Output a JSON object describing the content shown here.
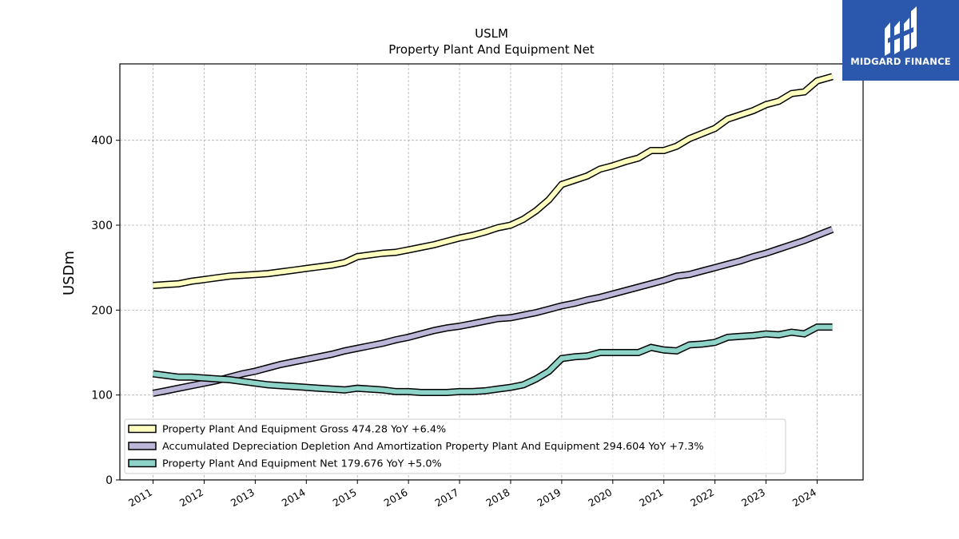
{
  "brand": {
    "name": "MIDGARD FINANCE",
    "background": "#2b58ac",
    "icon": "midgard-monogram-icon"
  },
  "chart_data": {
    "type": "line",
    "title": "USLM",
    "subtitle": "Property Plant And Equipment Net",
    "xlabel": "",
    "ylabel": "USDm",
    "xlim": [
      2010.35,
      2024.9
    ],
    "ylim": [
      0,
      490
    ],
    "yticks": [
      0,
      100,
      200,
      300,
      400
    ],
    "xticks": [
      2011,
      2012,
      2013,
      2014,
      2015,
      2016,
      2017,
      2018,
      2019,
      2020,
      2021,
      2022,
      2023,
      2024
    ],
    "grid": true,
    "legend_position": "lower-left",
    "series": [
      {
        "name": "Property Plant And Equipment Gross  474.28 YoY +6.4%",
        "color": "#ffffbf",
        "points": [
          [
            2011.0,
            229
          ],
          [
            2011.25,
            230
          ],
          [
            2011.5,
            231
          ],
          [
            2011.75,
            234
          ],
          [
            2012.0,
            236
          ],
          [
            2012.25,
            238
          ],
          [
            2012.5,
            240
          ],
          [
            2012.75,
            241
          ],
          [
            2013.0,
            242
          ],
          [
            2013.25,
            243
          ],
          [
            2013.5,
            245
          ],
          [
            2013.75,
            247
          ],
          [
            2014.0,
            249
          ],
          [
            2014.25,
            251
          ],
          [
            2014.5,
            253
          ],
          [
            2014.75,
            256
          ],
          [
            2015.0,
            263
          ],
          [
            2015.25,
            265
          ],
          [
            2015.5,
            267
          ],
          [
            2015.75,
            268
          ],
          [
            2016.0,
            271
          ],
          [
            2016.25,
            274
          ],
          [
            2016.5,
            277
          ],
          [
            2016.75,
            281
          ],
          [
            2017.0,
            285
          ],
          [
            2017.25,
            288
          ],
          [
            2017.5,
            292
          ],
          [
            2017.75,
            297
          ],
          [
            2018.0,
            300
          ],
          [
            2018.25,
            307
          ],
          [
            2018.5,
            317
          ],
          [
            2018.75,
            330
          ],
          [
            2019.0,
            348
          ],
          [
            2019.25,
            353
          ],
          [
            2019.5,
            358
          ],
          [
            2019.75,
            366
          ],
          [
            2020.0,
            370
          ],
          [
            2020.25,
            375
          ],
          [
            2020.5,
            379
          ],
          [
            2020.75,
            388
          ],
          [
            2021.0,
            388
          ],
          [
            2021.25,
            393
          ],
          [
            2021.5,
            402
          ],
          [
            2021.75,
            408
          ],
          [
            2022.0,
            414
          ],
          [
            2022.25,
            425
          ],
          [
            2022.5,
            430
          ],
          [
            2022.75,
            435
          ],
          [
            2023.0,
            442
          ],
          [
            2023.25,
            446
          ],
          [
            2023.5,
            455
          ],
          [
            2023.75,
            457
          ],
          [
            2024.0,
            470
          ],
          [
            2024.3,
            475
          ]
        ]
      },
      {
        "name": "Accumulated Depreciation Depletion And Amortization Property Plant And Equipment  294.604 YoY +7.3%",
        "color": "#bcb6d8",
        "points": [
          [
            2011.0,
            102
          ],
          [
            2011.25,
            105
          ],
          [
            2011.5,
            108
          ],
          [
            2011.75,
            111
          ],
          [
            2012.0,
            114
          ],
          [
            2012.25,
            117
          ],
          [
            2012.5,
            121
          ],
          [
            2012.75,
            125
          ],
          [
            2013.0,
            128
          ],
          [
            2013.25,
            132
          ],
          [
            2013.5,
            136
          ],
          [
            2013.75,
            139
          ],
          [
            2014.0,
            142
          ],
          [
            2014.25,
            145
          ],
          [
            2014.5,
            148
          ],
          [
            2014.75,
            152
          ],
          [
            2015.0,
            155
          ],
          [
            2015.25,
            158
          ],
          [
            2015.5,
            161
          ],
          [
            2015.75,
            165
          ],
          [
            2016.0,
            168
          ],
          [
            2016.25,
            172
          ],
          [
            2016.5,
            176
          ],
          [
            2016.75,
            179
          ],
          [
            2017.0,
            181
          ],
          [
            2017.25,
            184
          ],
          [
            2017.5,
            187
          ],
          [
            2017.75,
            190
          ],
          [
            2018.0,
            191
          ],
          [
            2018.25,
            194
          ],
          [
            2018.5,
            197
          ],
          [
            2018.75,
            201
          ],
          [
            2019.0,
            205
          ],
          [
            2019.25,
            208
          ],
          [
            2019.5,
            212
          ],
          [
            2019.75,
            215
          ],
          [
            2020.0,
            219
          ],
          [
            2020.25,
            223
          ],
          [
            2020.5,
            227
          ],
          [
            2020.75,
            231
          ],
          [
            2021.0,
            235
          ],
          [
            2021.25,
            240
          ],
          [
            2021.5,
            242
          ],
          [
            2021.75,
            246
          ],
          [
            2022.0,
            250
          ],
          [
            2022.25,
            254
          ],
          [
            2022.5,
            258
          ],
          [
            2022.75,
            263
          ],
          [
            2023.0,
            267
          ],
          [
            2023.25,
            272
          ],
          [
            2023.5,
            277
          ],
          [
            2023.75,
            282
          ],
          [
            2024.0,
            288
          ],
          [
            2024.3,
            295
          ]
        ]
      },
      {
        "name": "Property Plant And Equipment Net  179.676 YoY +5.0%",
        "color": "#8dd3c7",
        "points": [
          [
            2011.0,
            125
          ],
          [
            2011.25,
            123
          ],
          [
            2011.5,
            121
          ],
          [
            2011.75,
            121
          ],
          [
            2012.0,
            120
          ],
          [
            2012.25,
            119
          ],
          [
            2012.5,
            118
          ],
          [
            2012.75,
            116
          ],
          [
            2013.0,
            114
          ],
          [
            2013.25,
            112
          ],
          [
            2013.5,
            111
          ],
          [
            2013.75,
            110
          ],
          [
            2014.0,
            109
          ],
          [
            2014.25,
            108
          ],
          [
            2014.5,
            107
          ],
          [
            2014.75,
            106
          ],
          [
            2015.0,
            108
          ],
          [
            2015.25,
            107
          ],
          [
            2015.5,
            106
          ],
          [
            2015.75,
            104
          ],
          [
            2016.0,
            104
          ],
          [
            2016.25,
            103
          ],
          [
            2016.5,
            103
          ],
          [
            2016.75,
            103
          ],
          [
            2017.0,
            104
          ],
          [
            2017.25,
            104
          ],
          [
            2017.5,
            105
          ],
          [
            2017.75,
            107
          ],
          [
            2018.0,
            109
          ],
          [
            2018.25,
            112
          ],
          [
            2018.5,
            119
          ],
          [
            2018.75,
            128
          ],
          [
            2019.0,
            143
          ],
          [
            2019.25,
            145
          ],
          [
            2019.5,
            146
          ],
          [
            2019.75,
            150
          ],
          [
            2020.0,
            150
          ],
          [
            2020.25,
            150
          ],
          [
            2020.5,
            150
          ],
          [
            2020.75,
            156
          ],
          [
            2021.0,
            153
          ],
          [
            2021.25,
            152
          ],
          [
            2021.5,
            159
          ],
          [
            2021.75,
            160
          ],
          [
            2022.0,
            162
          ],
          [
            2022.25,
            168
          ],
          [
            2022.5,
            169
          ],
          [
            2022.75,
            170
          ],
          [
            2023.0,
            172
          ],
          [
            2023.25,
            171
          ],
          [
            2023.5,
            174
          ],
          [
            2023.75,
            172
          ],
          [
            2024.0,
            180
          ],
          [
            2024.3,
            180
          ]
        ]
      }
    ]
  }
}
